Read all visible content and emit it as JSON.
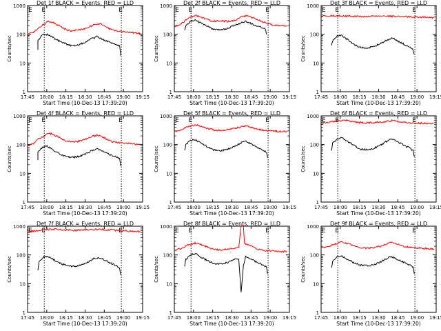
{
  "figure": {
    "xlabel": "Start Time (10-Dec-13 17:39:20)",
    "ylabel": "Counts/sec",
    "x_ticks": [
      "17:45",
      "18:00",
      "18:15",
      "18:30",
      "18:45",
      "19:00",
      "19:15"
    ],
    "y_ticks": [
      "1",
      "10",
      "100",
      "1000"
    ],
    "boundary_label": "E",
    "colors": {
      "events": "#000000",
      "lld": "#ff0000",
      "axes": "#000000"
    }
  },
  "chart_data": [
    {
      "type": "line",
      "title": "Det 1f BLACK = Events, RED = LLD",
      "xlim": [
        0,
        100
      ],
      "ylim": [
        1,
        1000
      ],
      "yscale": "log",
      "marker_x": [
        14.5,
        81.5
      ],
      "x": [
        0,
        4,
        8,
        12,
        16,
        20,
        24,
        28,
        32,
        36,
        40,
        44,
        48,
        52,
        56,
        60,
        64,
        68,
        72,
        76,
        80,
        84
      ],
      "series": [
        {
          "name": "LLD",
          "color": "#ff0000",
          "values": [
            null,
            null,
            null,
            null,
            null,
            null,
            null,
            null,
            null,
            null,
            null,
            null,
            null,
            null,
            null,
            null,
            null,
            null,
            null,
            null,
            null,
            null
          ]
        },
        {
          "name": "Events",
          "color": "#000000",
          "values": [
            null,
            null,
            null,
            null,
            null,
            null,
            null,
            null,
            null,
            null,
            null,
            null,
            null,
            null,
            null,
            null,
            null,
            null,
            null,
            null,
            null,
            null
          ]
        }
      ],
      "lld_points": [
        [
          0,
          100
        ],
        [
          5,
          120
        ],
        [
          10,
          170
        ],
        [
          15,
          230
        ],
        [
          18,
          290
        ],
        [
          22,
          260
        ],
        [
          27,
          200
        ],
        [
          32,
          150
        ],
        [
          38,
          130
        ],
        [
          44,
          140
        ],
        [
          50,
          160
        ],
        [
          56,
          200
        ],
        [
          60,
          230
        ],
        [
          64,
          220
        ],
        [
          69,
          170
        ],
        [
          74,
          140
        ],
        [
          80,
          125
        ],
        [
          86,
          118
        ],
        [
          92,
          112
        ],
        [
          98,
          108
        ]
      ],
      "events_points": [
        [
          9,
          30
        ],
        [
          9,
          60
        ],
        [
          13,
          95
        ],
        [
          17,
          100
        ],
        [
          20,
          85
        ],
        [
          25,
          65
        ],
        [
          31,
          50
        ],
        [
          38,
          40
        ],
        [
          44,
          42
        ],
        [
          50,
          52
        ],
        [
          56,
          70
        ],
        [
          60,
          82
        ],
        [
          64,
          70
        ],
        [
          70,
          55
        ],
        [
          75,
          45
        ],
        [
          80,
          40
        ],
        [
          81,
          18
        ]
      ]
    },
    {
      "type": "line",
      "title": "Det 2f BLACK = Events, RED = LLD",
      "xlim": [
        0,
        100
      ],
      "ylim": [
        1,
        1000
      ],
      "yscale": "log",
      "marker_x": [
        14.5,
        81.5
      ],
      "lld_points": [
        [
          0,
          180
        ],
        [
          6,
          230
        ],
        [
          12,
          350
        ],
        [
          18,
          450
        ],
        [
          22,
          420
        ],
        [
          28,
          330
        ],
        [
          34,
          280
        ],
        [
          40,
          290
        ],
        [
          46,
          280
        ],
        [
          52,
          300
        ],
        [
          58,
          400
        ],
        [
          64,
          440
        ],
        [
          70,
          350
        ],
        [
          76,
          280
        ],
        [
          82,
          230
        ],
        [
          88,
          200
        ],
        [
          94,
          200
        ],
        [
          98,
          195
        ]
      ],
      "events_points": [
        [
          9,
          140
        ],
        [
          10,
          200
        ],
        [
          14,
          280
        ],
        [
          18,
          310
        ],
        [
          22,
          260
        ],
        [
          28,
          190
        ],
        [
          34,
          150
        ],
        [
          40,
          140
        ],
        [
          46,
          160
        ],
        [
          52,
          200
        ],
        [
          58,
          250
        ],
        [
          62,
          280
        ],
        [
          66,
          240
        ],
        [
          70,
          200
        ],
        [
          75,
          180
        ],
        [
          79,
          150
        ],
        [
          80,
          100
        ]
      ]
    },
    {
      "type": "line",
      "title": "Det 3f BLACK = Events, RED = LLD",
      "xlim": [
        0,
        100
      ],
      "ylim": [
        1,
        1000
      ],
      "yscale": "log",
      "marker_x": [
        14.5,
        81.5
      ],
      "lld_points": [
        [
          0,
          420
        ],
        [
          10,
          440
        ],
        [
          20,
          430
        ],
        [
          30,
          420
        ],
        [
          40,
          410
        ],
        [
          50,
          430
        ],
        [
          60,
          420
        ],
        [
          70,
          410
        ],
        [
          80,
          400
        ],
        [
          90,
          390
        ],
        [
          98,
          380
        ]
      ],
      "events_points": [
        [
          9,
          40
        ],
        [
          10,
          60
        ],
        [
          14,
          85
        ],
        [
          18,
          90
        ],
        [
          22,
          70
        ],
        [
          28,
          45
        ],
        [
          34,
          35
        ],
        [
          40,
          33
        ],
        [
          46,
          38
        ],
        [
          52,
          48
        ],
        [
          58,
          65
        ],
        [
          62,
          75
        ],
        [
          66,
          60
        ],
        [
          72,
          45
        ],
        [
          77,
          35
        ],
        [
          80,
          28
        ],
        [
          81,
          20
        ]
      ]
    },
    {
      "type": "line",
      "title": "Det 4f BLACK = Events, RED = LLD",
      "xlim": [
        0,
        100
      ],
      "ylim": [
        1,
        1000
      ],
      "yscale": "log",
      "marker_x": [
        14.5,
        81.5
      ],
      "lld_points": [
        [
          0,
          90
        ],
        [
          5,
          110
        ],
        [
          10,
          160
        ],
        [
          15,
          210
        ],
        [
          18,
          250
        ],
        [
          22,
          230
        ],
        [
          27,
          180
        ],
        [
          32,
          140
        ],
        [
          38,
          120
        ],
        [
          44,
          130
        ],
        [
          50,
          150
        ],
        [
          56,
          190
        ],
        [
          60,
          210
        ],
        [
          64,
          200
        ],
        [
          69,
          150
        ],
        [
          74,
          125
        ],
        [
          80,
          115
        ],
        [
          86,
          110
        ],
        [
          92,
          105
        ],
        [
          98,
          100
        ]
      ],
      "events_points": [
        [
          9,
          30
        ],
        [
          9,
          55
        ],
        [
          13,
          80
        ],
        [
          17,
          90
        ],
        [
          20,
          75
        ],
        [
          25,
          55
        ],
        [
          31,
          42
        ],
        [
          38,
          35
        ],
        [
          44,
          38
        ],
        [
          50,
          46
        ],
        [
          56,
          62
        ],
        [
          60,
          72
        ],
        [
          64,
          62
        ],
        [
          70,
          48
        ],
        [
          75,
          40
        ],
        [
          80,
          34
        ],
        [
          81,
          18
        ]
      ]
    },
    {
      "type": "line",
      "title": "Det 5f BLACK = Events, RED = LLD",
      "xlim": [
        0,
        100
      ],
      "ylim": [
        1,
        1000
      ],
      "yscale": "log",
      "marker_x": [
        14.5,
        81.5
      ],
      "lld_points": [
        [
          0,
          280
        ],
        [
          6,
          330
        ],
        [
          12,
          420
        ],
        [
          18,
          480
        ],
        [
          22,
          450
        ],
        [
          28,
          380
        ],
        [
          34,
          320
        ],
        [
          40,
          310
        ],
        [
          46,
          330
        ],
        [
          52,
          360
        ],
        [
          58,
          420
        ],
        [
          62,
          450
        ],
        [
          66,
          400
        ],
        [
          72,
          340
        ],
        [
          78,
          310
        ],
        [
          84,
          300
        ],
        [
          90,
          290
        ],
        [
          98,
          280
        ]
      ],
      "events_points": [
        [
          9,
          60
        ],
        [
          10,
          100
        ],
        [
          14,
          140
        ],
        [
          18,
          150
        ],
        [
          22,
          120
        ],
        [
          28,
          85
        ],
        [
          34,
          65
        ],
        [
          40,
          60
        ],
        [
          46,
          68
        ],
        [
          52,
          85
        ],
        [
          58,
          115
        ],
        [
          62,
          130
        ],
        [
          66,
          110
        ],
        [
          72,
          80
        ],
        [
          77,
          65
        ],
        [
          80,
          55
        ],
        [
          81,
          35
        ]
      ]
    },
    {
      "type": "line",
      "title": "Det 6f BLACK = Events, RED = LLD",
      "xlim": [
        0,
        100
      ],
      "ylim": [
        1,
        1000
      ],
      "yscale": "log",
      "marker_x": [
        14.5,
        81.5
      ],
      "lld_points": [
        [
          0,
          560
        ],
        [
          6,
          600
        ],
        [
          12,
          650
        ],
        [
          18,
          700
        ],
        [
          22,
          680
        ],
        [
          28,
          620
        ],
        [
          34,
          580
        ],
        [
          40,
          570
        ],
        [
          46,
          580
        ],
        [
          52,
          600
        ],
        [
          58,
          650
        ],
        [
          62,
          680
        ],
        [
          66,
          650
        ],
        [
          72,
          600
        ],
        [
          78,
          570
        ],
        [
          84,
          560
        ],
        [
          90,
          550
        ],
        [
          98,
          545
        ]
      ],
      "events_points": [
        [
          9,
          60
        ],
        [
          10,
          110
        ],
        [
          14,
          160
        ],
        [
          18,
          175
        ],
        [
          22,
          140
        ],
        [
          28,
          95
        ],
        [
          34,
          70
        ],
        [
          40,
          65
        ],
        [
          46,
          75
        ],
        [
          52,
          95
        ],
        [
          58,
          140
        ],
        [
          62,
          160
        ],
        [
          66,
          130
        ],
        [
          72,
          95
        ],
        [
          77,
          75
        ],
        [
          80,
          62
        ],
        [
          81,
          38
        ]
      ]
    },
    {
      "type": "line",
      "title": "Det 7f BLACK = Events, RED = LLD",
      "xlim": [
        0,
        100
      ],
      "ylim": [
        1,
        1000
      ],
      "yscale": "log",
      "marker_x": [
        14.5,
        81.5
      ],
      "lld_points": [
        [
          0,
          640
        ],
        [
          8,
          700
        ],
        [
          16,
          760
        ],
        [
          24,
          780
        ],
        [
          32,
          750
        ],
        [
          40,
          720
        ],
        [
          48,
          730
        ],
        [
          56,
          760
        ],
        [
          64,
          770
        ],
        [
          72,
          740
        ],
        [
          80,
          700
        ],
        [
          88,
          680
        ],
        [
          98,
          650
        ]
      ],
      "events_points": [
        [
          9,
          30
        ],
        [
          10,
          60
        ],
        [
          14,
          85
        ],
        [
          18,
          90
        ],
        [
          22,
          72
        ],
        [
          28,
          52
        ],
        [
          34,
          42
        ],
        [
          40,
          40
        ],
        [
          46,
          44
        ],
        [
          52,
          55
        ],
        [
          58,
          75
        ],
        [
          62,
          82
        ],
        [
          66,
          70
        ],
        [
          72,
          52
        ],
        [
          77,
          42
        ],
        [
          80,
          35
        ],
        [
          81,
          20
        ]
      ]
    },
    {
      "type": "line",
      "title": "Det 8f BLACK = Events, RED = LLD",
      "xlim": [
        0,
        100
      ],
      "ylim": [
        1,
        1000
      ],
      "yscale": "log",
      "marker_x": [
        14.5,
        81.5
      ],
      "lld_points": [
        [
          0,
          140
        ],
        [
          6,
          170
        ],
        [
          12,
          220
        ],
        [
          18,
          260
        ],
        [
          22,
          240
        ],
        [
          28,
          190
        ],
        [
          34,
          160
        ],
        [
          40,
          150
        ],
        [
          46,
          160
        ],
        [
          52,
          175
        ],
        [
          56,
          185
        ],
        [
          58,
          1000
        ],
        [
          60,
          1000
        ],
        [
          61,
          250
        ],
        [
          64,
          230
        ],
        [
          68,
          190
        ],
        [
          72,
          160
        ],
        [
          78,
          145
        ],
        [
          84,
          140
        ],
        [
          90,
          135
        ],
        [
          98,
          130
        ]
      ],
      "events_points": [
        [
          9,
          40
        ],
        [
          10,
          70
        ],
        [
          14,
          100
        ],
        [
          18,
          110
        ],
        [
          22,
          90
        ],
        [
          28,
          65
        ],
        [
          34,
          52
        ],
        [
          40,
          48
        ],
        [
          46,
          54
        ],
        [
          52,
          68
        ],
        [
          56,
          75
        ],
        [
          58,
          5
        ],
        [
          60,
          40
        ],
        [
          62,
          85
        ],
        [
          66,
          75
        ],
        [
          72,
          55
        ],
        [
          77,
          45
        ],
        [
          80,
          38
        ],
        [
          81,
          22
        ]
      ]
    },
    {
      "type": "line",
      "title": "Det 9f BLACK = Events, RED = LLD",
      "xlim": [
        0,
        100
      ],
      "ylim": [
        1,
        1000
      ],
      "yscale": "log",
      "marker_x": [
        14.5,
        81.5
      ],
      "lld_points": [
        [
          0,
          170
        ],
        [
          6,
          200
        ],
        [
          12,
          240
        ],
        [
          18,
          280
        ],
        [
          22,
          260
        ],
        [
          28,
          210
        ],
        [
          34,
          180
        ],
        [
          40,
          170
        ],
        [
          46,
          180
        ],
        [
          52,
          200
        ],
        [
          58,
          250
        ],
        [
          62,
          270
        ],
        [
          66,
          240
        ],
        [
          72,
          200
        ],
        [
          78,
          180
        ],
        [
          84,
          170
        ],
        [
          90,
          165
        ],
        [
          98,
          160
        ]
      ],
      "events_points": [
        [
          9,
          35
        ],
        [
          10,
          60
        ],
        [
          14,
          85
        ],
        [
          18,
          90
        ],
        [
          22,
          72
        ],
        [
          28,
          55
        ],
        [
          34,
          44
        ],
        [
          40,
          42
        ],
        [
          46,
          46
        ],
        [
          52,
          58
        ],
        [
          58,
          78
        ],
        [
          62,
          85
        ],
        [
          66,
          72
        ],
        [
          72,
          55
        ],
        [
          77,
          44
        ],
        [
          80,
          38
        ],
        [
          81,
          22
        ]
      ]
    }
  ]
}
